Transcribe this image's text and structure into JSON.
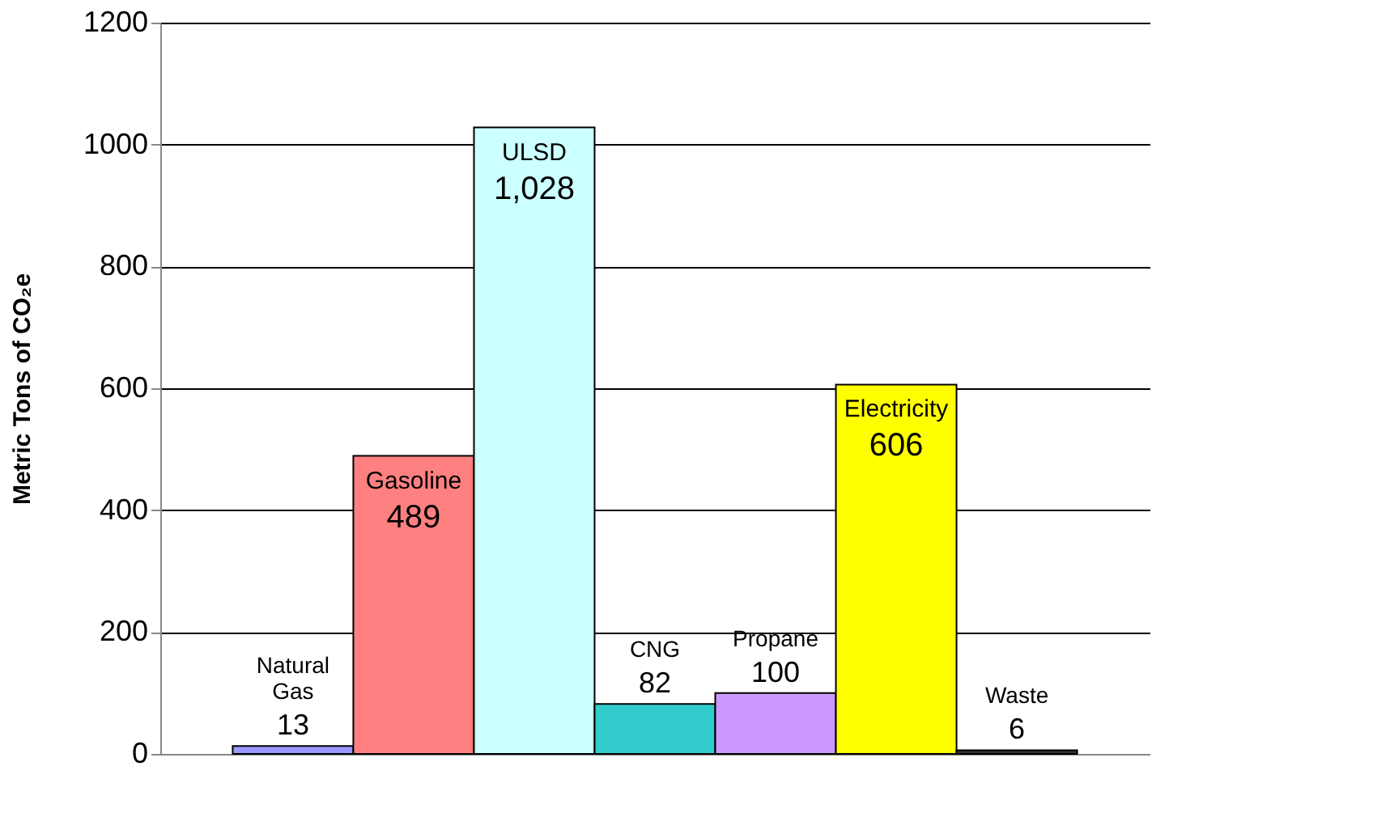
{
  "chart_data": {
    "type": "bar",
    "ylabel": "Metric Tons of CO₂e",
    "categories": [
      "Natural Gas",
      "Gasoline",
      "ULSD",
      "CNG",
      "Propane",
      "Electricity",
      "Waste"
    ],
    "values": [
      13,
      489,
      1028,
      82,
      100,
      606,
      6
    ],
    "value_labels": [
      "13",
      "489",
      "1,028",
      "82",
      "100",
      "606",
      "6"
    ],
    "colors": [
      "#9999ff",
      "#ff8080",
      "#ccffff",
      "#33cccc",
      "#cc99ff",
      "#ffff00",
      "#333333"
    ],
    "ylim": [
      0,
      1200
    ],
    "yticks": [
      0,
      200,
      400,
      600,
      800,
      {
        "value": 1000,
        "label": "1000"
      },
      {
        "value": 1200,
        "label": "1200"
      }
    ],
    "grid": "y",
    "tick_labels": "y"
  }
}
